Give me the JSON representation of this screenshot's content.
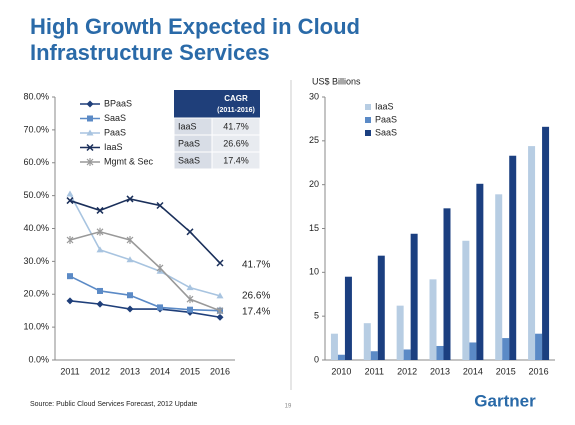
{
  "title": [
    "High Growth Expected in Cloud",
    "Infrastructure Services"
  ],
  "chart_data": [
    {
      "type": "line",
      "categories": [
        "2011",
        "2012",
        "2013",
        "2014",
        "2015",
        "2016"
      ],
      "ylim": [
        0,
        80
      ],
      "yticks": [
        {
          "value": 0,
          "label": "0.0%"
        },
        {
          "value": 10,
          "label": "10.0%"
        },
        {
          "value": 20,
          "label": "20.0%"
        },
        {
          "value": 30,
          "label": "30.0%"
        },
        {
          "value": 40,
          "label": "40.0%"
        },
        {
          "value": 50,
          "label": "50.0%"
        },
        {
          "value": 60,
          "label": "60.0%"
        },
        {
          "value": 70,
          "label": "70.0%"
        },
        {
          "value": 80,
          "label": "80.0%"
        }
      ],
      "series": [
        {
          "name": "BPaaS",
          "color": "#1f3f7a",
          "marker": "diamond",
          "values": [
            18,
            17,
            15.5,
            15.5,
            14.5,
            13
          ]
        },
        {
          "name": "SaaS",
          "color": "#5b8ac6",
          "marker": "square",
          "values": [
            25.5,
            21,
            19.7,
            16,
            15.3,
            15
          ]
        },
        {
          "name": "PaaS",
          "color": "#a8c4e0",
          "marker": "triangle",
          "values": [
            50.5,
            33.5,
            30.5,
            27,
            22,
            19.5
          ]
        },
        {
          "name": "IaaS",
          "color": "#1a2f5a",
          "marker": "x",
          "values": [
            48.5,
            45.5,
            49,
            47,
            39,
            29.5
          ]
        },
        {
          "name": "Mgmt & Sec",
          "color": "#999999",
          "marker": "star",
          "values": [
            36.5,
            39,
            36.5,
            28,
            18.5,
            15
          ]
        }
      ],
      "annotations": [
        "41.7%",
        "26.6%",
        "17.4%"
      ]
    },
    {
      "type": "bar",
      "y_label": "US$ Billions",
      "categories": [
        "2010",
        "2011",
        "2012",
        "2013",
        "2014",
        "2015",
        "2016"
      ],
      "ylim": [
        0,
        30
      ],
      "yticks": [
        0,
        5,
        10,
        15,
        20,
        25,
        30
      ],
      "series": [
        {
          "name": "IaaS",
          "color": "#b7cde3",
          "values": [
            3,
            4.2,
            6.2,
            9.2,
            13.6,
            18.9,
            24.4
          ]
        },
        {
          "name": "PaaS",
          "color": "#5b8ac6",
          "values": [
            0.6,
            1,
            1.2,
            1.6,
            2,
            2.5,
            3
          ]
        },
        {
          "name": "SaaS",
          "color": "#1b3f80",
          "values": [
            9.5,
            11.9,
            14.4,
            17.3,
            20.1,
            23.3,
            26.6
          ]
        }
      ]
    }
  ],
  "table": {
    "header": [
      "CAGR",
      "(2011-2016)"
    ],
    "rows": [
      [
        "IaaS",
        "41.7%"
      ],
      [
        "PaaS",
        "26.6%"
      ],
      [
        "SaaS",
        "17.4%"
      ]
    ]
  },
  "footer": {
    "source": "Source: Public Cloud Services Forecast, 2012 Update",
    "page": "19",
    "logo": "Gartner"
  }
}
